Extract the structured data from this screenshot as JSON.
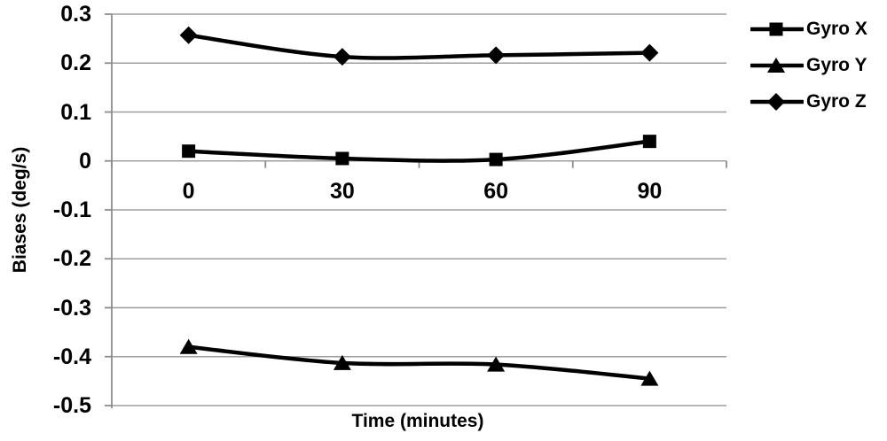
{
  "chart_data": {
    "type": "line",
    "title": "",
    "xlabel": "Time (minutes)",
    "ylabel": "Biases (deg/s)",
    "x": [
      0,
      30,
      60,
      90
    ],
    "x_tick_labels": [
      "0",
      "30",
      "60",
      "90"
    ],
    "y_ticks": [
      0.3,
      0.2,
      0.1,
      0,
      -0.1,
      -0.2,
      -0.3,
      -0.4,
      -0.5
    ],
    "y_tick_labels": [
      "0.3",
      "0.2",
      "0.1",
      "0",
      "-0.1",
      "-0.2",
      "-0.3",
      "-0.4",
      "-0.5"
    ],
    "ylim": [
      -0.5,
      0.3
    ],
    "grid": true,
    "smoothed_lines": true,
    "legend_position": "right",
    "series": [
      {
        "name": "Gyro X",
        "marker": "square",
        "values": [
          0.02,
          0.005,
          0.003,
          0.04
        ]
      },
      {
        "name": "Gyro Y",
        "marker": "triangle",
        "values": [
          -0.38,
          -0.413,
          -0.416,
          -0.445
        ]
      },
      {
        "name": "Gyro Z",
        "marker": "diamond",
        "values": [
          0.257,
          0.213,
          0.216,
          0.221
        ]
      }
    ],
    "colors": {
      "series": "#000000",
      "gridline": "#9d9d9d",
      "axis": "#8c8c8c",
      "text": "#000000",
      "background": "#ffffff"
    }
  }
}
